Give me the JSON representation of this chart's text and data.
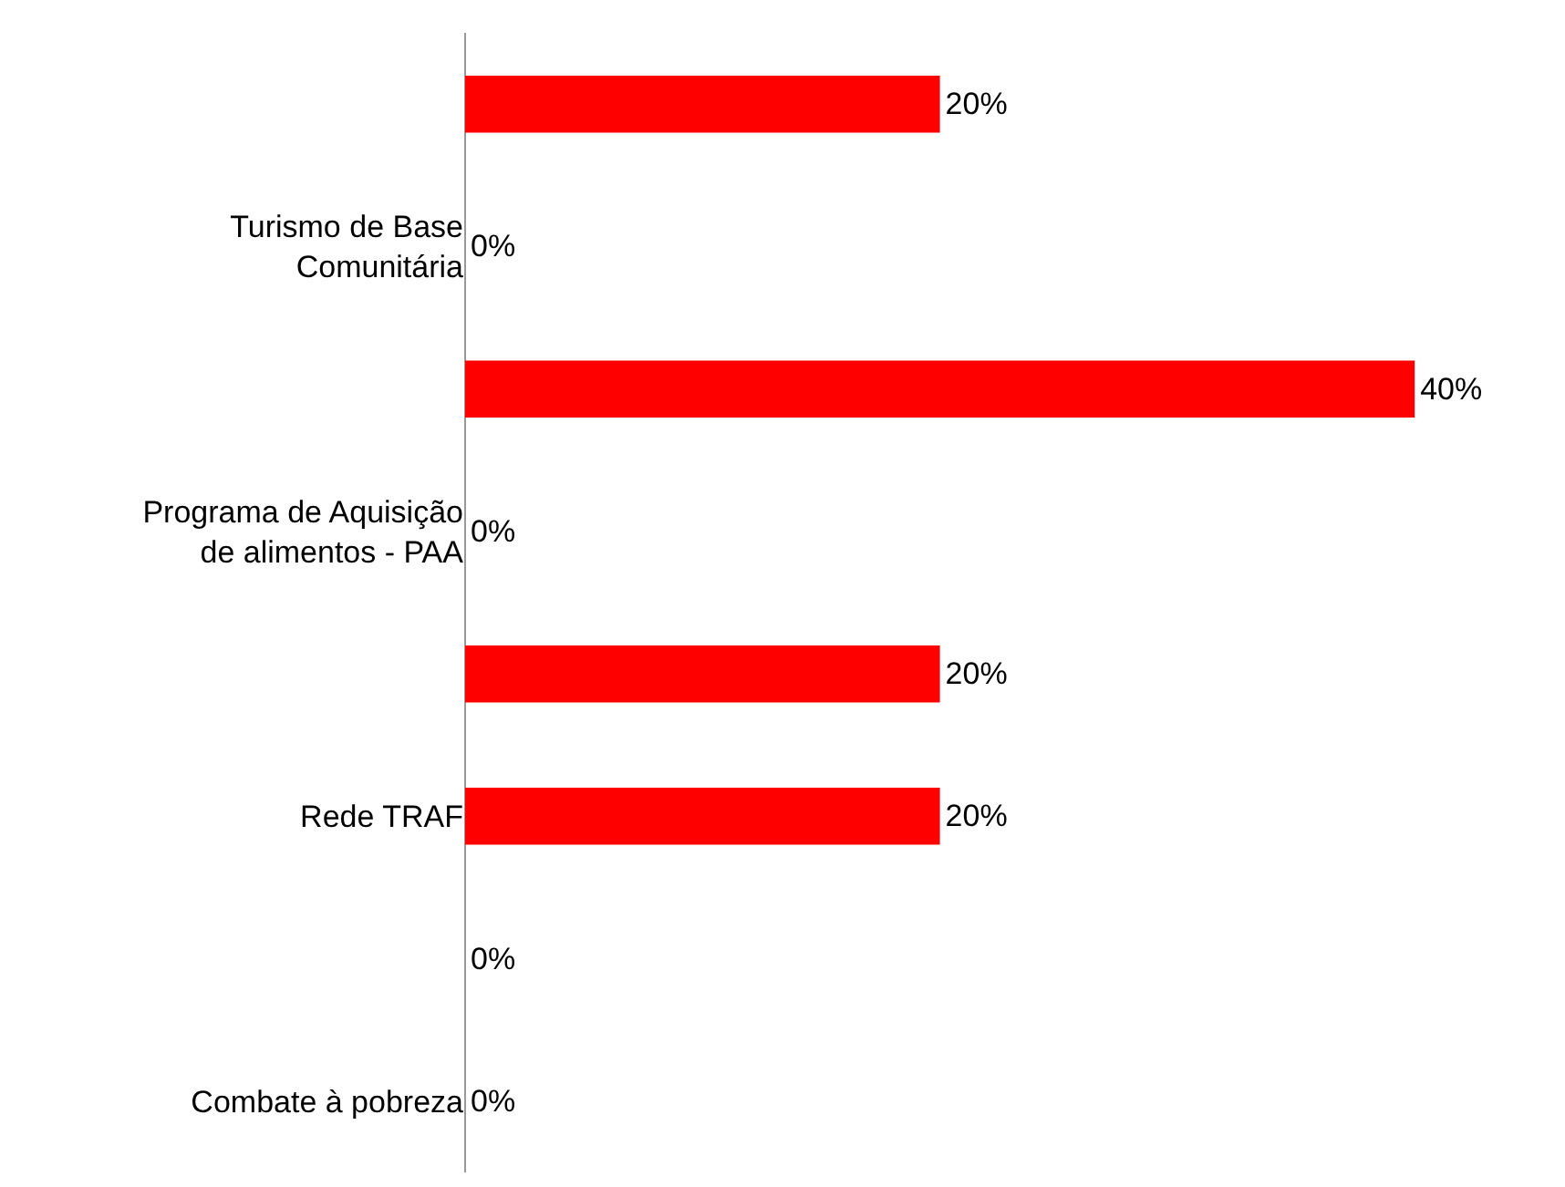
{
  "chart_data": {
    "type": "bar",
    "orientation": "horizontal",
    "categories": [
      null,
      "Turismo de Base Comunitária",
      null,
      "Programa de Aquisição de alimentos - PAA",
      null,
      "Rede TRAF",
      null,
      "Combate à pobreza"
    ],
    "values": [
      20,
      0,
      40,
      0,
      20,
      20,
      0,
      0
    ],
    "value_labels": [
      "20%",
      "0%",
      "40%",
      "0%",
      "20%",
      "20%",
      "0%",
      "0%"
    ],
    "color": "#ff0000",
    "grid": false,
    "legend": false
  }
}
